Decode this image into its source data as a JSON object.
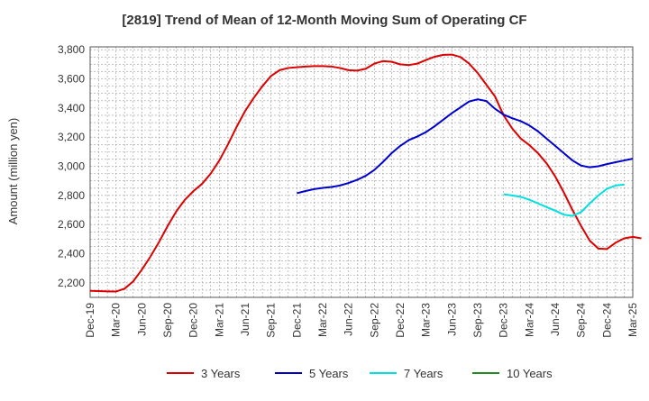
{
  "chart_data": {
    "type": "line",
    "title": "[2819]  Trend of Mean of 12-Month Moving Sum of Operating CF",
    "xlabel": "",
    "ylabel": "Amount (million yen)",
    "ylim": [
      2100,
      3820
    ],
    "yticks": [
      2200,
      2400,
      2600,
      2800,
      3000,
      3200,
      3400,
      3600,
      3800
    ],
    "ytick_labels": [
      "2,200",
      "2,400",
      "2,600",
      "2,800",
      "3,000",
      "3,200",
      "3,400",
      "3,600",
      "3,800"
    ],
    "xticks": [
      "Dec-19",
      "Mar-20",
      "Jun-20",
      "Sep-20",
      "Dec-20",
      "Mar-21",
      "Jun-21",
      "Sep-21",
      "Dec-21",
      "Mar-22",
      "Jun-22",
      "Sep-22",
      "Dec-22",
      "Mar-23",
      "Jun-23",
      "Sep-23",
      "Dec-23",
      "Mar-24",
      "Jun-24",
      "Sep-24",
      "Dec-24",
      "Mar-25"
    ],
    "grid": true,
    "legend_position": "bottom",
    "series": [
      {
        "name": "3 Years",
        "color": "#dd0000",
        "start_month": 0,
        "values": [
          2145,
          2143,
          2141,
          2140,
          2160,
          2210,
          2290,
          2380,
          2480,
          2590,
          2690,
          2770,
          2830,
          2880,
          2950,
          3040,
          3150,
          3270,
          3380,
          3470,
          3550,
          3620,
          3660,
          3675,
          3680,
          3685,
          3688,
          3688,
          3685,
          3675,
          3660,
          3657,
          3670,
          3705,
          3722,
          3718,
          3700,
          3695,
          3705,
          3730,
          3752,
          3765,
          3767,
          3750,
          3705,
          3640,
          3560,
          3480,
          3350,
          3260,
          3190,
          3145,
          3090,
          3020,
          2930,
          2820,
          2700,
          2590,
          2490,
          2435,
          2432,
          2475,
          2505,
          2515,
          2505
        ]
      },
      {
        "name": "5 Years",
        "color": "#0000cc",
        "start_month": 24,
        "values": [
          2815,
          2830,
          2843,
          2852,
          2858,
          2868,
          2885,
          2907,
          2935,
          2975,
          3030,
          3090,
          3140,
          3180,
          3205,
          3235,
          3275,
          3320,
          3365,
          3405,
          3445,
          3460,
          3448,
          3395,
          3355,
          3330,
          3310,
          3280,
          3240,
          3190,
          3140,
          3090,
          3040,
          3005,
          2993,
          3000,
          3015,
          3028,
          3040,
          3052
        ]
      },
      {
        "name": "7 Years",
        "color": "#00e0e0",
        "start_month": 48,
        "values": [
          2808,
          2800,
          2790,
          2770,
          2745,
          2720,
          2695,
          2668,
          2660,
          2685,
          2745,
          2800,
          2845,
          2868,
          2875
        ]
      },
      {
        "name": "10 Years",
        "color": "#228b22",
        "start_month": 0,
        "values": []
      }
    ]
  }
}
